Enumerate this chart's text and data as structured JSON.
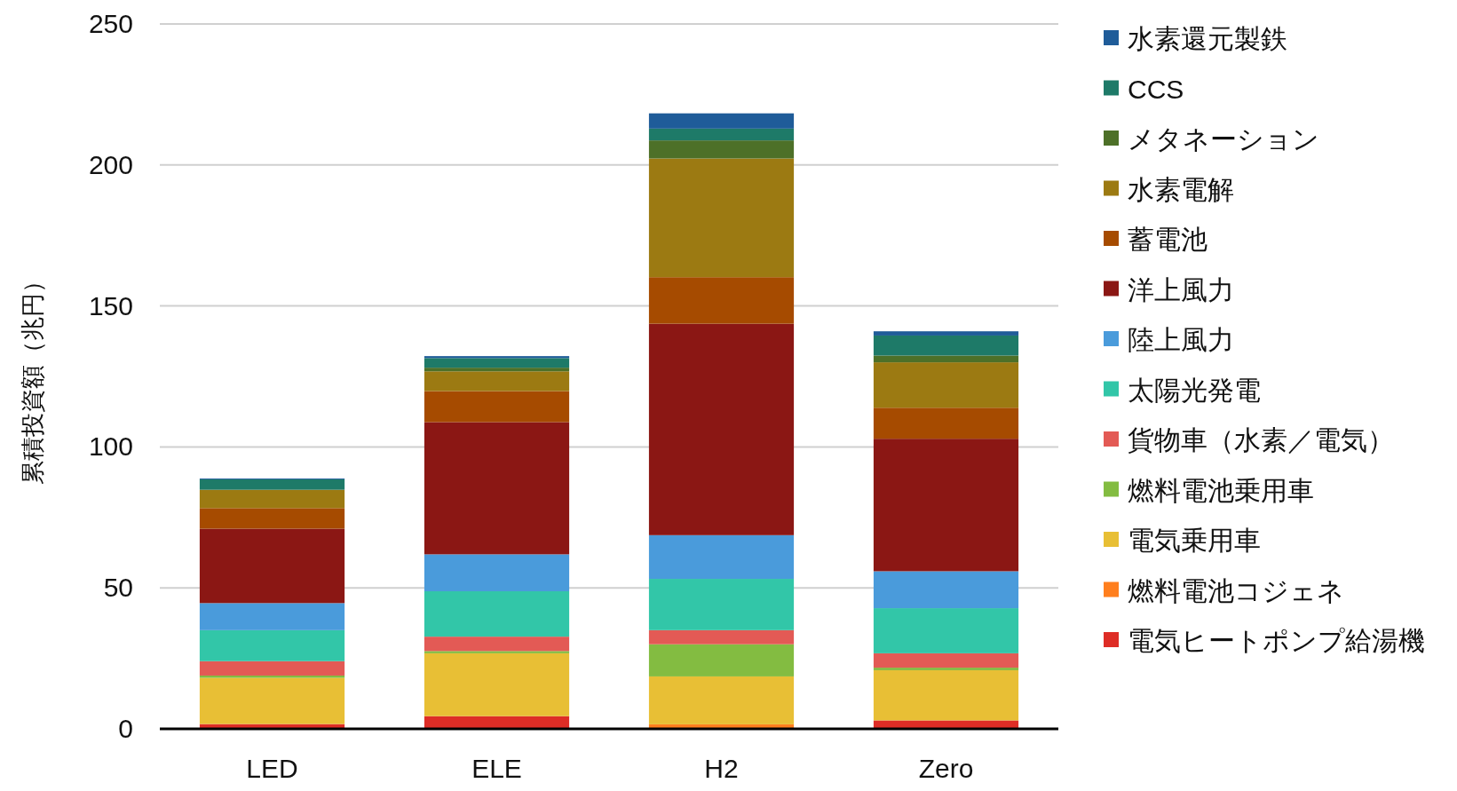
{
  "chart_data": {
    "type": "bar",
    "stacked": true,
    "ylabel": "累積投資額（兆円）",
    "categories": [
      "LED",
      "ELE",
      "H2",
      "Zero"
    ],
    "ylim": [
      0,
      250
    ],
    "yticks": [
      0,
      50,
      100,
      150,
      200,
      250
    ],
    "grid": "y",
    "legend": "right",
    "series": [
      {
        "name": "電気ヒートポンプ給湯機",
        "color": "#de2d26",
        "values": [
          1.7,
          4.5,
          0,
          3.0
        ]
      },
      {
        "name": "燃料電池コジェネ",
        "color": "#ff7f1e",
        "values": [
          0,
          0,
          1.6,
          0
        ]
      },
      {
        "name": "電気乗用車",
        "color": "#e8bf35",
        "values": [
          16.4,
          22.3,
          17.0,
          17.8
        ]
      },
      {
        "name": "燃料電池乗用車",
        "color": "#83bc41",
        "values": [
          0.8,
          0.8,
          11.4,
          0.9
        ]
      },
      {
        "name": "貨物車（水素／電気）",
        "color": "#e35a55",
        "values": [
          5.1,
          5.1,
          5.0,
          5.1
        ]
      },
      {
        "name": "太陽光発電",
        "color": "#32c6a8",
        "values": [
          11.0,
          16.1,
          18.2,
          16.0
        ]
      },
      {
        "name": "陸上風力",
        "color": "#4a9bdb",
        "values": [
          9.6,
          13.1,
          15.5,
          13.1
        ]
      },
      {
        "name": "洋上風力",
        "color": "#8b1714",
        "values": [
          26.4,
          46.9,
          75.0,
          47.0
        ]
      },
      {
        "name": "蓄電池",
        "color": "#a64b00",
        "values": [
          7.3,
          11.0,
          16.5,
          11.0
        ]
      },
      {
        "name": "水素電解",
        "color": "#9c7a12",
        "values": [
          6.5,
          7.0,
          42.1,
          16.1
        ]
      },
      {
        "name": "メタネーション",
        "color": "#4d7028",
        "values": [
          0,
          1.3,
          6.4,
          2.4
        ]
      },
      {
        "name": "CCS",
        "color": "#1e7a68",
        "values": [
          3.7,
          3.4,
          4.2,
          7.1
        ]
      },
      {
        "name": "水素還元製鉄",
        "color": "#1f5c99",
        "values": [
          0.3,
          0.7,
          5.4,
          1.5
        ]
      }
    ]
  }
}
